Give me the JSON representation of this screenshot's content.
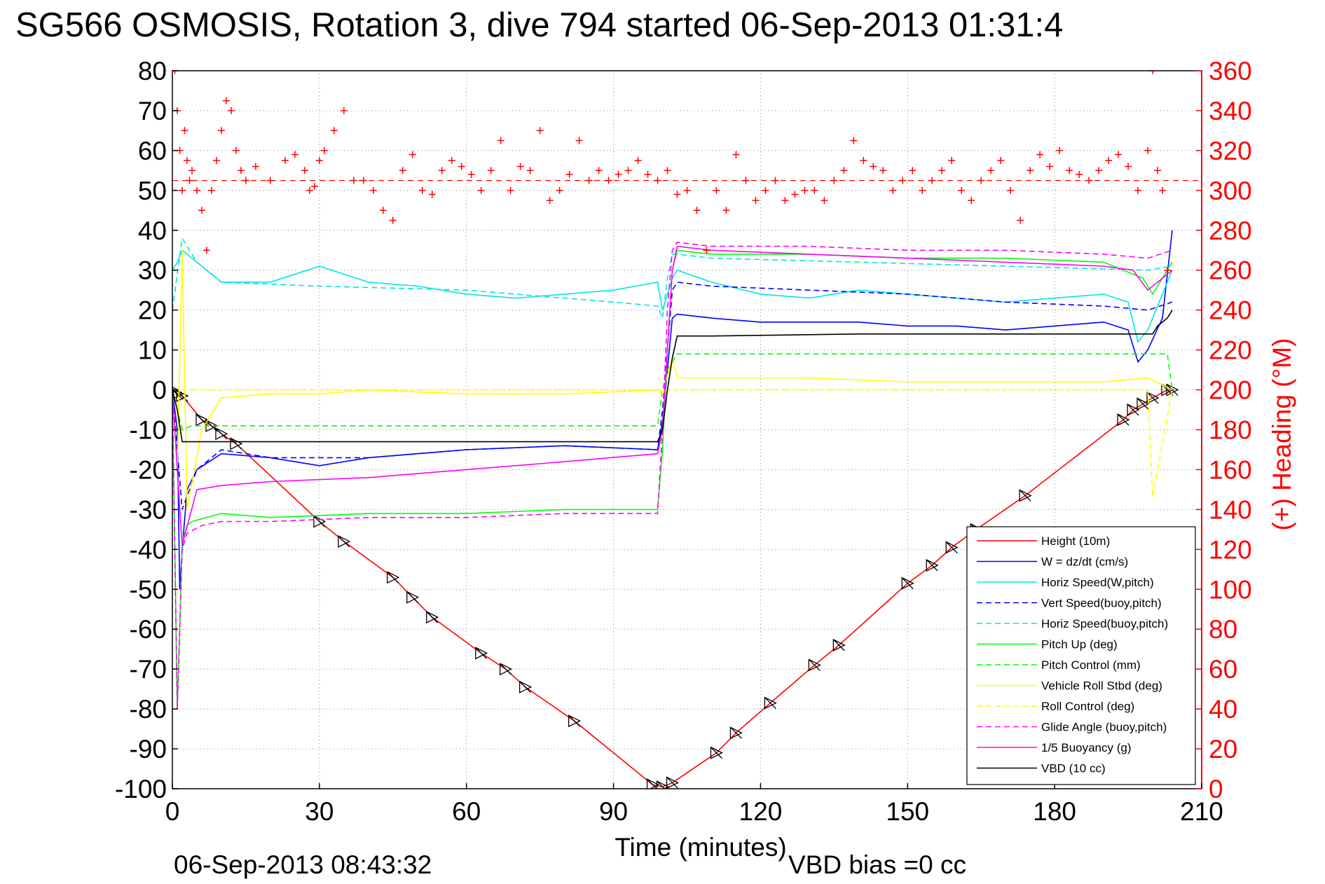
{
  "chart_data": {
    "type": "line",
    "title": "SG566 OSMOSIS, Rotation 3, dive 794 started 06-Sep-2013 01:31:4",
    "xlabel": "Time (minutes)",
    "ylabel_right": "(+) Heading (°M)",
    "xlim": [
      0,
      210
    ],
    "ylim": [
      -100,
      80
    ],
    "ylim_right": [
      0,
      360
    ],
    "x_ticks": [
      "0",
      "30",
      "60",
      "90",
      "120",
      "150",
      "180",
      "210"
    ],
    "y_ticks": [
      "80",
      "70",
      "60",
      "50",
      "40",
      "30",
      "20",
      "10",
      "0",
      "-10",
      "-20",
      "-30",
      "-40",
      "-50",
      "-60",
      "-70",
      "-80",
      "-90",
      "-100"
    ],
    "y_ticks_right": [
      "360",
      "340",
      "320",
      "300",
      "280",
      "260",
      "240",
      "220",
      "200",
      "180",
      "160",
      "140",
      "120",
      "100",
      "80",
      "60",
      "40",
      "20",
      "0"
    ],
    "grid": true,
    "legend_position": "bottom-right",
    "footer_left": "06-Sep-2013 08:43:32",
    "footer_right": "VBD bias =0 cc",
    "series": [
      {
        "name": "Height (10m)",
        "color": "#ff0000",
        "style": "solid",
        "x": [
          0,
          1,
          2,
          6,
          8,
          10,
          13,
          30,
          35,
          45,
          49,
          53,
          63,
          68,
          72,
          82,
          98,
          100,
          102,
          111,
          115,
          122,
          131,
          136,
          150,
          155,
          159,
          164,
          174,
          194,
          196,
          198,
          200,
          203,
          204
        ],
        "y": [
          0,
          -1,
          -1.5,
          -7.5,
          -9,
          -11,
          -13.5,
          -33,
          -38,
          -47,
          -52,
          -57,
          -66,
          -70,
          -74.5,
          -83,
          -99,
          -99.5,
          -98.5,
          -91,
          -86,
          -78.5,
          -69,
          -64,
          -48.5,
          -44,
          -39.5,
          -35,
          -26.5,
          -7.5,
          -5,
          -3.5,
          -2,
          0,
          0
        ]
      },
      {
        "name": "W = dz/dt (cm/s)",
        "color": "#0000ff",
        "style": "solid",
        "x": [
          0,
          1,
          1.5,
          2,
          3,
          5,
          10,
          20,
          30,
          40,
          60,
          80,
          99,
          100,
          101,
          102,
          103,
          110,
          120,
          130,
          140,
          150,
          160,
          170,
          180,
          190,
          195,
          197,
          199,
          202,
          204
        ],
        "y": [
          0,
          -10,
          -50,
          -40,
          -25,
          -20,
          -16,
          -17,
          -19,
          -17,
          -15,
          -14,
          -15,
          -8,
          5,
          18,
          19,
          18,
          17,
          17,
          17,
          16,
          16,
          15,
          16,
          17,
          15,
          7,
          10,
          18,
          40
        ]
      },
      {
        "name": "Horiz Speed(W,pitch)",
        "color": "#00e5e5",
        "style": "solid",
        "x": [
          0,
          1,
          2,
          4,
          7,
          10,
          20,
          30,
          40,
          50,
          60,
          70,
          80,
          90,
          99,
          100,
          102,
          103,
          110,
          120,
          130,
          140,
          150,
          160,
          170,
          180,
          190,
          195,
          197,
          199,
          202,
          204
        ],
        "y": [
          30,
          32,
          35,
          33,
          30,
          27,
          27,
          31,
          27,
          26,
          24,
          23,
          24,
          25,
          27,
          20,
          28,
          30,
          27,
          24,
          23,
          25,
          24,
          23,
          22,
          23,
          24,
          22,
          12,
          15,
          24,
          30
        ]
      },
      {
        "name": "Vert Speed(buoy,pitch)",
        "color": "#0000ff",
        "style": "dashed",
        "x": [
          0,
          2,
          5,
          10,
          20,
          40,
          60,
          80,
          99,
          100,
          101,
          102,
          103,
          110,
          130,
          150,
          170,
          190,
          199,
          204
        ],
        "y": [
          0,
          -30,
          -20,
          -15,
          -17,
          -17,
          -15,
          -14,
          -15,
          -5,
          10,
          25,
          27,
          26,
          25,
          24,
          22,
          21,
          20,
          22
        ]
      },
      {
        "name": "Horiz Speed(buoy,pitch)",
        "color": "#00e5e5",
        "style": "dashed",
        "x": [
          0,
          2,
          5,
          10,
          30,
          60,
          90,
          99,
          100,
          101,
          102,
          103,
          110,
          140,
          170,
          199,
          204
        ],
        "y": [
          20,
          38,
          32,
          27,
          26,
          25,
          22,
          21,
          18,
          28,
          34,
          34,
          33,
          32,
          31,
          30,
          31
        ]
      },
      {
        "name": "Pitch Up (deg)",
        "color": "#00ff00",
        "style": "solid",
        "x": [
          0,
          1,
          1.5,
          2,
          3,
          4,
          10,
          20,
          40,
          60,
          80,
          99,
          100,
          101,
          102,
          103,
          110,
          130,
          150,
          170,
          190,
          198,
          200,
          202,
          204
        ],
        "y": [
          0,
          -80,
          -60,
          -38,
          -34,
          -33,
          -31,
          -32,
          -31,
          -31,
          -30,
          -30,
          -15,
          10,
          30,
          35,
          34,
          34,
          33,
          33,
          32,
          28,
          24,
          28,
          32
        ]
      },
      {
        "name": "Pitch Control (mm)",
        "color": "#00ff00",
        "style": "dashed",
        "x": [
          0,
          2,
          4,
          99,
          100,
          101,
          103,
          203,
          204
        ],
        "y": [
          0,
          -10,
          -9,
          -9,
          0,
          5,
          9,
          9,
          0
        ]
      },
      {
        "name": "Vehicle Roll Stbd (deg)",
        "color": "#ffff00",
        "style": "solid",
        "x": [
          0,
          1,
          2,
          3,
          6,
          10,
          20,
          30,
          40,
          60,
          80,
          99,
          100,
          102,
          103,
          110,
          130,
          150,
          170,
          190,
          199,
          204
        ],
        "y": [
          0,
          -20,
          35,
          -30,
          -10,
          -2,
          -1,
          -1,
          0,
          -1,
          -1,
          0,
          -1,
          8,
          3,
          3,
          3,
          2,
          2,
          2,
          3,
          0
        ]
      },
      {
        "name": "Roll Control (deg)",
        "color": "#ffff00",
        "style": "dashed",
        "x": [
          0,
          2,
          4,
          99,
          100,
          101,
          103,
          199,
          200,
          204
        ],
        "y": [
          0,
          0,
          0,
          0,
          0,
          0,
          0,
          0,
          -27,
          0
        ]
      },
      {
        "name": "Glide Angle (buoy,pitch)",
        "color": "#ff00ff",
        "style": "dashed",
        "x": [
          0,
          1,
          2,
          3,
          6,
          10,
          20,
          40,
          60,
          80,
          99,
          100,
          101,
          102,
          103,
          110,
          130,
          150,
          170,
          190,
          199,
          204
        ],
        "y": [
          0,
          -80,
          -40,
          -36,
          -34,
          -33,
          -33,
          -32,
          -32,
          -31,
          -31,
          -10,
          20,
          35,
          37,
          36,
          36,
          35,
          35,
          34,
          33,
          35
        ]
      },
      {
        "name": "1/5 Buoyancy (g)",
        "color": "#ff00ff",
        "style": "solid",
        "x": [
          0,
          1,
          2,
          5,
          10,
          20,
          40,
          60,
          80,
          99,
          100,
          101,
          102,
          103,
          110,
          130,
          150,
          170,
          190,
          196,
          199,
          204
        ],
        "y": [
          0,
          -20,
          -39,
          -25,
          -24,
          -23,
          -22,
          -20,
          -18,
          -16,
          -10,
          10,
          30,
          36,
          35,
          34,
          33,
          32,
          31,
          30,
          25,
          30
        ]
      },
      {
        "name": "VBD (10 cc)",
        "color": "#000000",
        "style": "solid",
        "x": [
          0,
          1,
          2,
          99,
          100,
          101,
          102,
          103,
          110,
          140,
          200,
          201,
          202,
          203,
          204
        ],
        "y": [
          0,
          -5,
          -13,
          -13,
          -10,
          0,
          8,
          13.5,
          13.5,
          14,
          14,
          16,
          17,
          18,
          20
        ]
      },
      {
        "name": "",
        "color": "#ff0000",
        "style": "plus",
        "axis": "right",
        "x": [
          0.5,
          1,
          1.5,
          2,
          2.5,
          3,
          3.5,
          4,
          5,
          6,
          7,
          8,
          9,
          10,
          11,
          12,
          13,
          14,
          15,
          17,
          20,
          23,
          25,
          27,
          28,
          29,
          30,
          31,
          33,
          35,
          37,
          39,
          41,
          43,
          45,
          47,
          49,
          51,
          53,
          55,
          57,
          59,
          61,
          63,
          65,
          67,
          69,
          71,
          73,
          75,
          77,
          79,
          81,
          83,
          85,
          87,
          89,
          91,
          93,
          95,
          97,
          99,
          101,
          103,
          105,
          107,
          109,
          111,
          113,
          115,
          117,
          119,
          121,
          123,
          125,
          127,
          129,
          131,
          133,
          135,
          137,
          139,
          141,
          143,
          145,
          147,
          149,
          151,
          153,
          155,
          157,
          159,
          161,
          163,
          165,
          167,
          169,
          171,
          173,
          175,
          177,
          179,
          181,
          183,
          185,
          187,
          189,
          191,
          193,
          195,
          197,
          199,
          200,
          201,
          202,
          203
        ],
        "y": [
          360,
          340,
          320,
          300,
          330,
          315,
          305,
          310,
          300,
          290,
          270,
          300,
          315,
          330,
          345,
          340,
          320,
          310,
          305,
          312,
          305,
          315,
          318,
          310,
          300,
          302,
          315,
          320,
          330,
          340,
          305,
          305,
          300,
          290,
          285,
          310,
          318,
          300,
          298,
          310,
          315,
          312,
          308,
          300,
          310,
          325,
          300,
          312,
          310,
          330,
          295,
          300,
          308,
          325,
          305,
          310,
          305,
          308,
          310,
          315,
          308,
          305,
          310,
          298,
          300,
          290,
          270,
          300,
          290,
          318,
          305,
          295,
          300,
          305,
          295,
          298,
          300,
          300,
          295,
          305,
          310,
          325,
          315,
          312,
          310,
          300,
          305,
          310,
          300,
          305,
          310,
          315,
          300,
          295,
          305,
          310,
          315,
          300,
          285,
          310,
          318,
          312,
          320,
          310,
          308,
          305,
          310,
          315,
          318,
          312,
          300,
          320,
          360,
          310,
          300,
          260
        ]
      }
    ]
  }
}
